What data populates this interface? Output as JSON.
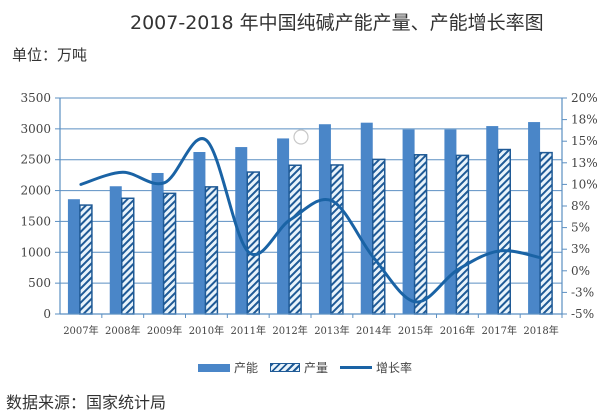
{
  "header": {
    "title": "2007-2018 年中国纯碱产能产量、产能增长率图",
    "unit": "单位：万吨"
  },
  "footer": {
    "source": "数据来源：国家统计局"
  },
  "legend": {
    "capacity": "产能",
    "production": "产量",
    "growth": "增长率"
  },
  "colors": {
    "capacity": "#4a86c8",
    "production_stripe": "#1f5a96",
    "production_fill": "#e8f3fb",
    "growth": "#1a63a5",
    "grid": "#5b8fc2"
  },
  "chart_data": {
    "type": "bar",
    "title": "2007-2018 年中国纯碱产能产量、产能增长率图",
    "ylabel": "单位：万吨",
    "categories": [
      "2007年",
      "2008年",
      "2009年",
      "2010年",
      "2011年",
      "2012年",
      "2013年",
      "2014年",
      "2015年",
      "2016年",
      "2017年",
      "2018年"
    ],
    "series": [
      {
        "name": "产能",
        "type": "bar",
        "axis": "left",
        "values": [
          1860,
          2070,
          2285,
          2625,
          2705,
          2845,
          3075,
          3100,
          2990,
          2990,
          3045,
          3110
        ]
      },
      {
        "name": "产量",
        "type": "bar",
        "axis": "left",
        "values": [
          1765,
          1875,
          1955,
          2060,
          2300,
          2410,
          2415,
          2505,
          2580,
          2570,
          2665,
          2615
        ]
      },
      {
        "name": "增长率",
        "type": "line",
        "axis": "right",
        "unit": "%",
        "values": [
          10.0,
          11.4,
          10.2,
          15.1,
          2.2,
          5.9,
          8.1,
          1.5,
          -3.6,
          0.1,
          2.3,
          1.5
        ]
      }
    ],
    "ylim": [
      0,
      3500
    ],
    "y_ticks": [
      "0",
      "500",
      "1000",
      "1500",
      "2000",
      "2500",
      "3000",
      "3500"
    ],
    "y2lim": [
      -5,
      20
    ],
    "y2_ticks": [
      "-5%",
      "-3%",
      "0%",
      "3%",
      "5%",
      "8%",
      "10%",
      "13%",
      "15%",
      "18%",
      "20%"
    ],
    "grid": true,
    "legend_position": "bottom"
  }
}
